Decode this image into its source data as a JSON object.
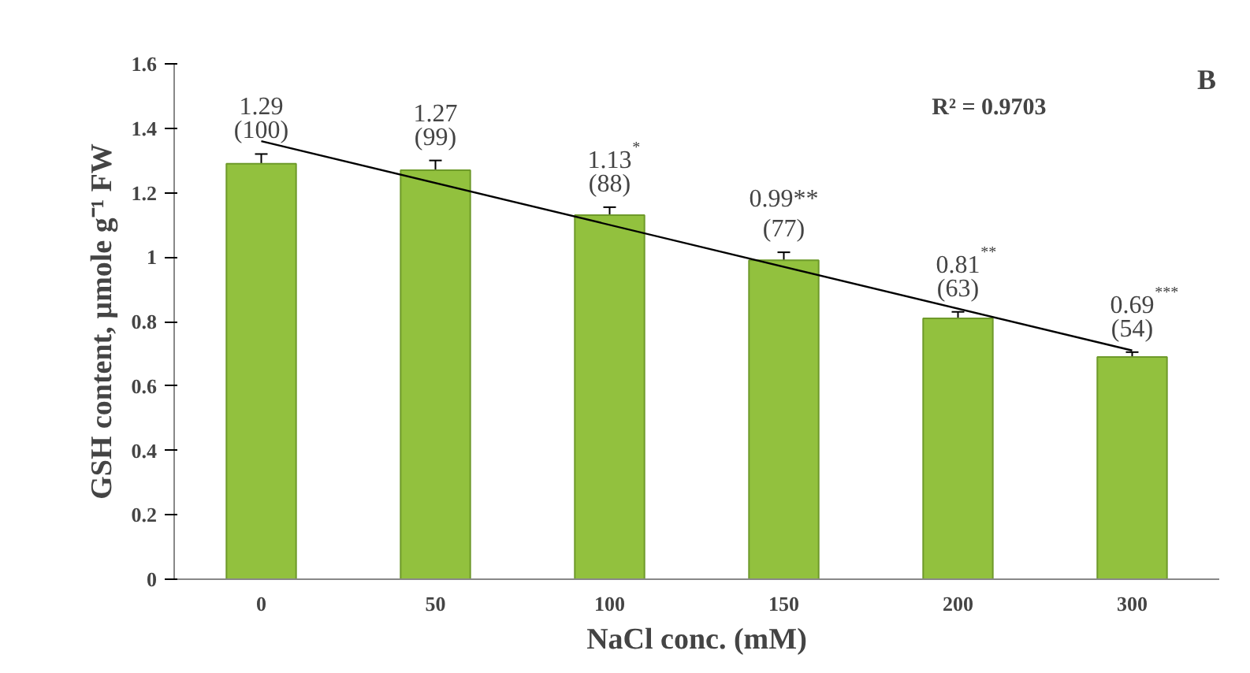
{
  "chart_data": {
    "type": "bar",
    "xlabel": "NaCl conc. (mM)",
    "ylabel": "GSH content, µmole g⁻¹ FW",
    "categories": [
      "0",
      "50",
      "100",
      "150",
      "200",
      "300"
    ],
    "values": [
      1.29,
      1.27,
      1.13,
      0.99,
      0.81,
      0.69
    ],
    "color": "#92c13e",
    "errors": [
      0.03,
      0.03,
      0.025,
      0.025,
      0.02,
      0.015
    ],
    "value_labels": [
      "1.29\n(100)",
      "1.27\n(99)",
      "1.13$^{*}$\n(88)",
      "0.99**\n(77)",
      "0.81$^{**}$\n(63)",
      "0.69$^{***}$\n(54)"
    ],
    "series": [
      {
        "type": "line",
        "color": "#000000",
        "x": [
          "0",
          "300"
        ],
        "values": [
          1.36,
          0.71
        ]
      }
    ],
    "annotations": [
      "R² = 0.9703",
      "B"
    ],
    "ylim": [
      0,
      1.6
    ],
    "yticks": [
      0,
      0.2,
      0.4,
      0.6,
      0.8,
      1,
      1.2,
      1.4,
      1.6
    ],
    "grid": false
  }
}
